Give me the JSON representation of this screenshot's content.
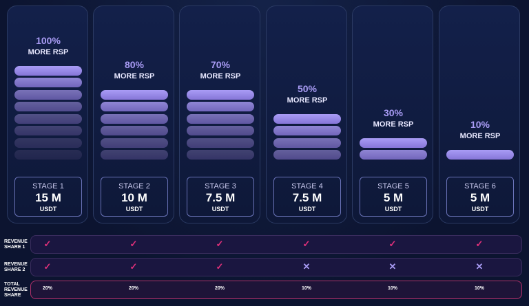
{
  "stages": [
    {
      "percent": "100%",
      "label": "MORE RSP",
      "stage": "STAGE 1",
      "amount": "15 M",
      "unit": "USDT"
    },
    {
      "percent": "80%",
      "label": "MORE RSP",
      "stage": "STAGE 2",
      "amount": "10 M",
      "unit": "USDT"
    },
    {
      "percent": "70%",
      "label": "MORE RSP",
      "stage": "STAGE 3",
      "amount": "7.5 M",
      "unit": "USDT"
    },
    {
      "percent": "50%",
      "label": "MORE RSP",
      "stage": "STAGE 4",
      "amount": "7.5 M",
      "unit": "USDT"
    },
    {
      "percent": "30%",
      "label": "MORE RSP",
      "stage": "STAGE 5",
      "amount": "5 M",
      "unit": "USDT"
    },
    {
      "percent": "10%",
      "label": "MORE RSP",
      "stage": "STAGE 6",
      "amount": "5 M",
      "unit": "USDT"
    }
  ],
  "rows": [
    {
      "label": "REVENUE SHARE 1",
      "cells": [
        "✓",
        "✓",
        "✓",
        "✓",
        "✓",
        "✓"
      ]
    },
    {
      "label": "REVENUE SHARE 2",
      "cells": [
        "✓",
        "✓",
        "✓",
        "✕",
        "✕",
        "✕"
      ]
    },
    {
      "label": "TOTAL REVENUE SHARE",
      "cells": [
        "20%",
        "20%",
        "20%",
        "10%",
        "10%",
        "10%"
      ]
    }
  ]
}
